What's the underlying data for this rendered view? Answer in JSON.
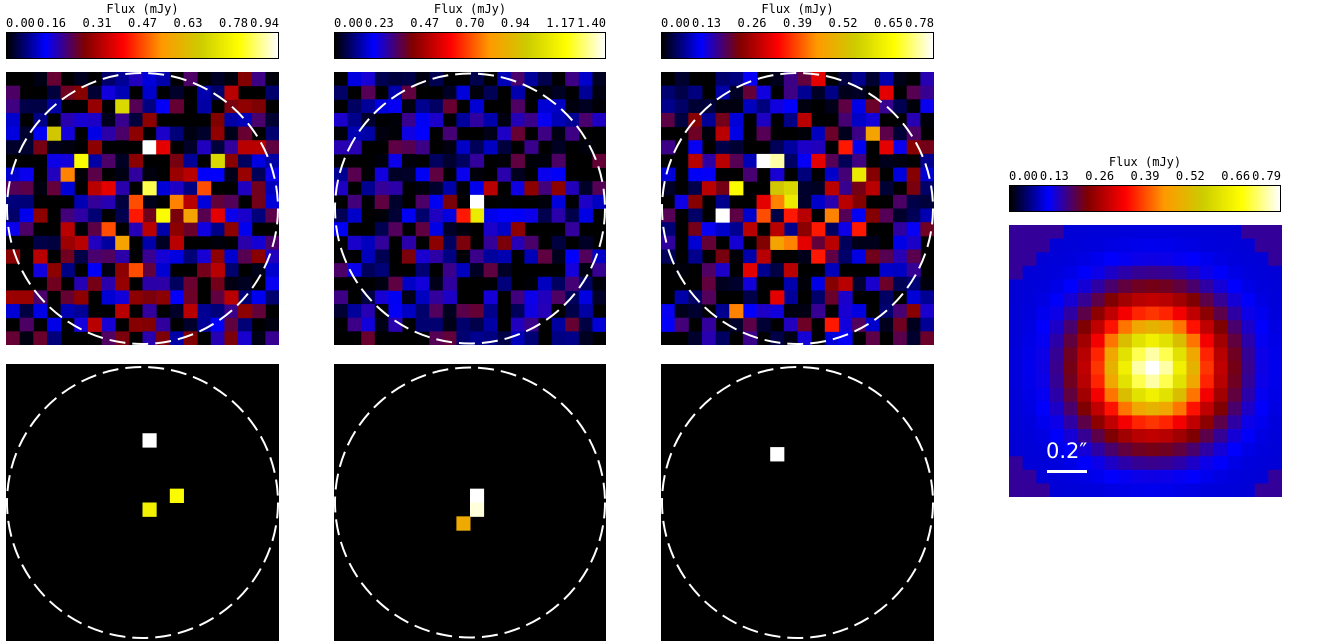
{
  "colormap": {
    "stops": [
      "#000000",
      "#0000ff",
      "#7f0000",
      "#ff0000",
      "#ff9900",
      "#cccc00",
      "#ffff00",
      "#ffffff"
    ]
  },
  "colorbars": [
    {
      "title": "Flux (mJy)",
      "ticks": [
        "0.00",
        "0.16",
        "0.31",
        "0.47",
        "0.63",
        "0.78",
        "0.94"
      ]
    },
    {
      "title": "Flux (mJy)",
      "ticks": [
        "0.00",
        "0.23",
        "0.47",
        "0.70",
        "0.94",
        "1.17",
        "1.40"
      ]
    },
    {
      "title": "Flux (mJy)",
      "ticks": [
        "0.00",
        "0.13",
        "0.26",
        "0.39",
        "0.52",
        "0.65",
        "0.78"
      ]
    },
    {
      "title": "Flux (mJy)",
      "ticks": [
        "0.00",
        "0.13",
        "0.26",
        "0.39",
        "0.52",
        "0.66",
        "0.79"
      ]
    }
  ],
  "maps": {
    "grid_size": 20,
    "top_row": [
      {
        "name": "flux-map-1",
        "circle": true,
        "peak": 0.94,
        "pixels": [
          [
            10,
            5,
            1.0
          ],
          [
            4,
            7,
            0.55
          ],
          [
            3,
            4,
            0.7
          ],
          [
            8,
            2,
            0.75
          ],
          [
            11,
            5,
            0.4
          ],
          [
            9,
            4,
            0.3
          ],
          [
            15,
            6,
            0.75
          ],
          [
            5,
            6,
            0.85
          ],
          [
            14,
            8,
            0.5
          ],
          [
            10,
            8,
            0.9
          ],
          [
            12,
            9,
            0.55
          ],
          [
            11,
            10,
            0.85
          ],
          [
            13,
            10,
            0.6
          ],
          [
            9,
            10,
            0.45
          ],
          [
            7,
            11,
            0.5
          ],
          [
            8,
            12,
            0.6
          ],
          [
            10,
            11,
            0.35
          ],
          [
            12,
            11,
            0.3
          ],
          [
            6,
            8,
            0.35
          ],
          [
            7,
            8,
            0.4
          ],
          [
            9,
            9,
            0.5
          ],
          [
            13,
            9,
            0.35
          ],
          [
            16,
            11,
            0.3
          ],
          [
            15,
            10,
            0.4
          ],
          [
            4,
            11,
            0.35
          ],
          [
            5,
            12,
            0.35
          ],
          [
            12,
            12,
            0.35
          ],
          [
            8,
            14,
            0.3
          ],
          [
            9,
            14,
            0.5
          ],
          [
            2,
            13,
            0.35
          ],
          [
            15,
            14,
            0.35
          ],
          [
            5,
            16,
            0.3
          ],
          [
            13,
            17,
            0.35
          ],
          [
            17,
            17,
            0.3
          ],
          [
            16,
            16,
            0.35
          ],
          [
            6,
            18,
            0.35
          ],
          [
            8,
            17,
            0.35
          ],
          [
            11,
            16,
            0.3
          ],
          [
            16,
            1,
            0.35
          ],
          [
            2,
            10,
            0.3
          ],
          [
            3,
            14,
            0.3
          ],
          [
            17,
            5,
            0.35
          ],
          [
            18,
            5,
            0.35
          ],
          [
            10,
            3,
            0.3
          ],
          [
            13,
            7,
            0.35
          ],
          [
            6,
            5,
            0.3
          ]
        ],
        "noise_seed": 11,
        "noise_level": 0.32
      },
      {
        "name": "flux-map-2",
        "circle": true,
        "peak": 1.4,
        "pixels": [
          [
            10,
            9,
            1.0
          ],
          [
            10,
            10,
            0.8
          ],
          [
            9,
            10,
            0.45
          ],
          [
            7,
            12,
            0.3
          ],
          [
            11,
            8,
            0.35
          ],
          [
            13,
            11,
            0.3
          ],
          [
            5,
            13,
            0.28
          ],
          [
            8,
            9,
            0.28
          ],
          [
            12,
            12,
            0.28
          ],
          [
            14,
            8,
            0.3
          ],
          [
            3,
            9,
            0.25
          ],
          [
            16,
            8,
            0.3
          ],
          [
            6,
            11,
            0.25
          ],
          [
            9,
            12,
            0.28
          ],
          [
            15,
            13,
            0.25
          ],
          [
            13,
            6,
            0.25
          ],
          [
            7,
            7,
            0.25
          ],
          [
            4,
            15,
            0.25
          ],
          [
            11,
            14,
            0.25
          ],
          [
            17,
            15,
            0.22
          ]
        ],
        "noise_seed": 23,
        "noise_level": 0.26
      },
      {
        "name": "flux-map-3",
        "circle": true,
        "peak": 0.78,
        "pixels": [
          [
            7,
            6,
            1.0
          ],
          [
            8,
            6,
            0.95
          ],
          [
            4,
            10,
            1.0
          ],
          [
            5,
            8,
            0.85
          ],
          [
            8,
            8,
            0.7
          ],
          [
            9,
            8,
            0.75
          ],
          [
            9,
            9,
            0.8
          ],
          [
            8,
            9,
            0.55
          ],
          [
            7,
            10,
            0.5
          ],
          [
            9,
            10,
            0.45
          ],
          [
            10,
            10,
            0.35
          ],
          [
            11,
            11,
            0.45
          ],
          [
            12,
            10,
            0.55
          ],
          [
            8,
            12,
            0.6
          ],
          [
            9,
            12,
            0.55
          ],
          [
            10,
            12,
            0.4
          ],
          [
            11,
            13,
            0.45
          ],
          [
            8,
            11,
            0.35
          ],
          [
            13,
            9,
            0.35
          ],
          [
            14,
            7,
            0.8
          ],
          [
            13,
            5,
            0.45
          ],
          [
            11,
            6,
            0.4
          ],
          [
            7,
            9,
            0.4
          ],
          [
            6,
            11,
            0.35
          ],
          [
            3,
            8,
            0.35
          ],
          [
            4,
            6,
            0.35
          ],
          [
            10,
            11,
            0.3
          ],
          [
            12,
            12,
            0.35
          ],
          [
            15,
            8,
            0.35
          ],
          [
            16,
            5,
            0.4
          ],
          [
            15,
            4,
            0.6
          ],
          [
            11,
            0,
            0.4
          ],
          [
            16,
            1,
            0.4
          ],
          [
            6,
            14,
            0.4
          ],
          [
            8,
            16,
            0.4
          ],
          [
            5,
            17,
            0.55
          ],
          [
            9,
            14,
            0.35
          ],
          [
            12,
            18,
            0.45
          ],
          [
            13,
            15,
            0.35
          ],
          [
            7,
            13,
            0.35
          ],
          [
            4,
            4,
            0.35
          ],
          [
            2,
            6,
            0.35
          ],
          [
            10,
            3,
            0.35
          ],
          [
            14,
            11,
            0.45
          ],
          [
            12,
            8,
            0.35
          ]
        ],
        "noise_seed": 37,
        "noise_level": 0.3
      }
    ],
    "bottom_row": [
      {
        "name": "detection-map-1",
        "circle": true,
        "pixels": [
          [
            10,
            5,
            1.0
          ],
          [
            12,
            9,
            0.85
          ],
          [
            10,
            10,
            0.82
          ]
        ]
      },
      {
        "name": "detection-map-2",
        "circle": true,
        "pixels": [
          [
            10,
            9,
            1.0
          ],
          [
            10,
            10,
            0.98
          ],
          [
            9,
            11,
            0.62
          ]
        ]
      },
      {
        "name": "detection-map-3",
        "circle": true,
        "pixels": [
          [
            8,
            6,
            1.0
          ]
        ]
      }
    ],
    "psf": {
      "name": "psf-map",
      "sigma": 2.9,
      "center": [
        10,
        10
      ],
      "ring_amp": 0.05
    }
  },
  "scalebar": {
    "label": "0.2″"
  }
}
